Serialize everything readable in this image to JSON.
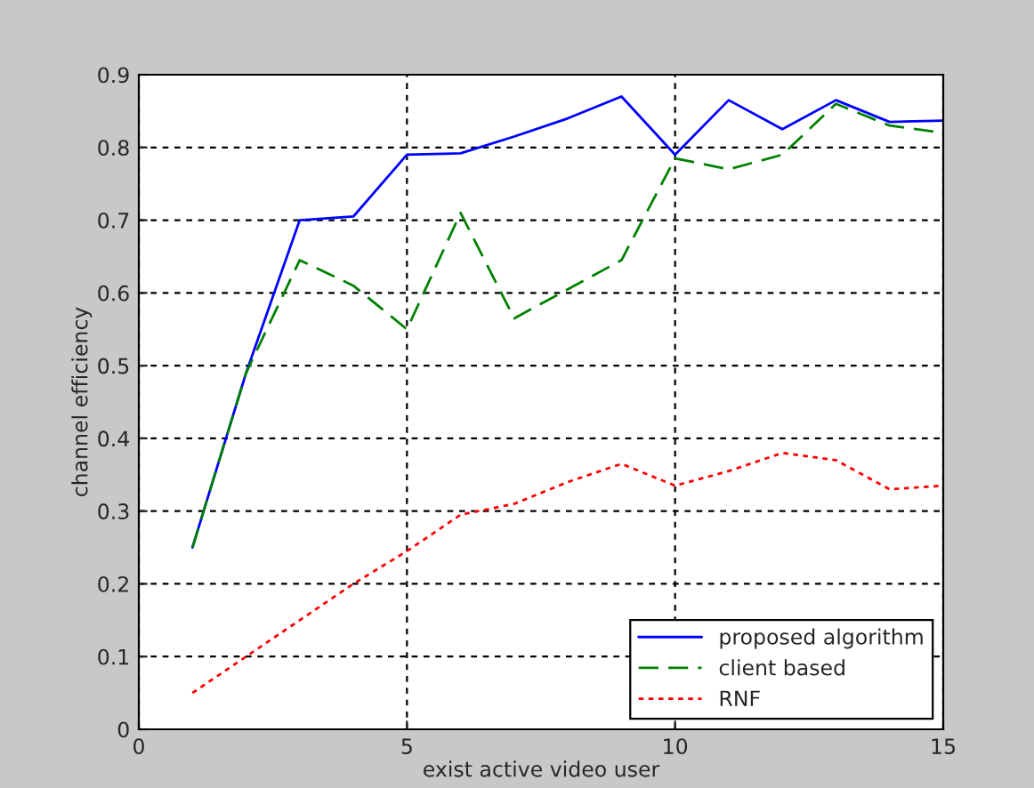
{
  "chart_data": {
    "type": "line",
    "xlabel": "exist active video user",
    "ylabel": "channel efficiency",
    "x": [
      1,
      2,
      3,
      4,
      5,
      6,
      7,
      8,
      9,
      10,
      11,
      12,
      13,
      14,
      15
    ],
    "xlim": [
      0,
      15
    ],
    "xticks": [
      0,
      5,
      10,
      15
    ],
    "ylim": [
      0,
      0.9
    ],
    "yticks": [
      0,
      0.1,
      0.2,
      0.3,
      0.4,
      0.5,
      0.6,
      0.7,
      0.8,
      0.9
    ],
    "grid": true,
    "legend": "bottom right",
    "series": [
      {
        "name": "proposed algorithm",
        "color": "#0000ff",
        "line_style": "solid",
        "values": [
          0.25,
          0.49,
          0.7,
          0.705,
          0.79,
          0.792,
          0.815,
          0.84,
          0.87,
          0.79,
          0.865,
          0.825,
          0.865,
          0.835,
          0.837
        ]
      },
      {
        "name": "client based",
        "color": "#008000",
        "line_style": "dashed",
        "values": [
          0.25,
          0.49,
          0.645,
          0.61,
          0.55,
          0.71,
          0.565,
          0.605,
          0.645,
          0.785,
          0.77,
          0.79,
          0.86,
          0.83,
          0.82
        ]
      },
      {
        "name": "RNF",
        "color": "#ff0000",
        "line_style": "dotted",
        "values": [
          0.05,
          0.1,
          0.15,
          0.2,
          0.245,
          0.295,
          0.31,
          0.34,
          0.365,
          0.335,
          0.355,
          0.38,
          0.37,
          0.33,
          0.335
        ]
      }
    ]
  }
}
